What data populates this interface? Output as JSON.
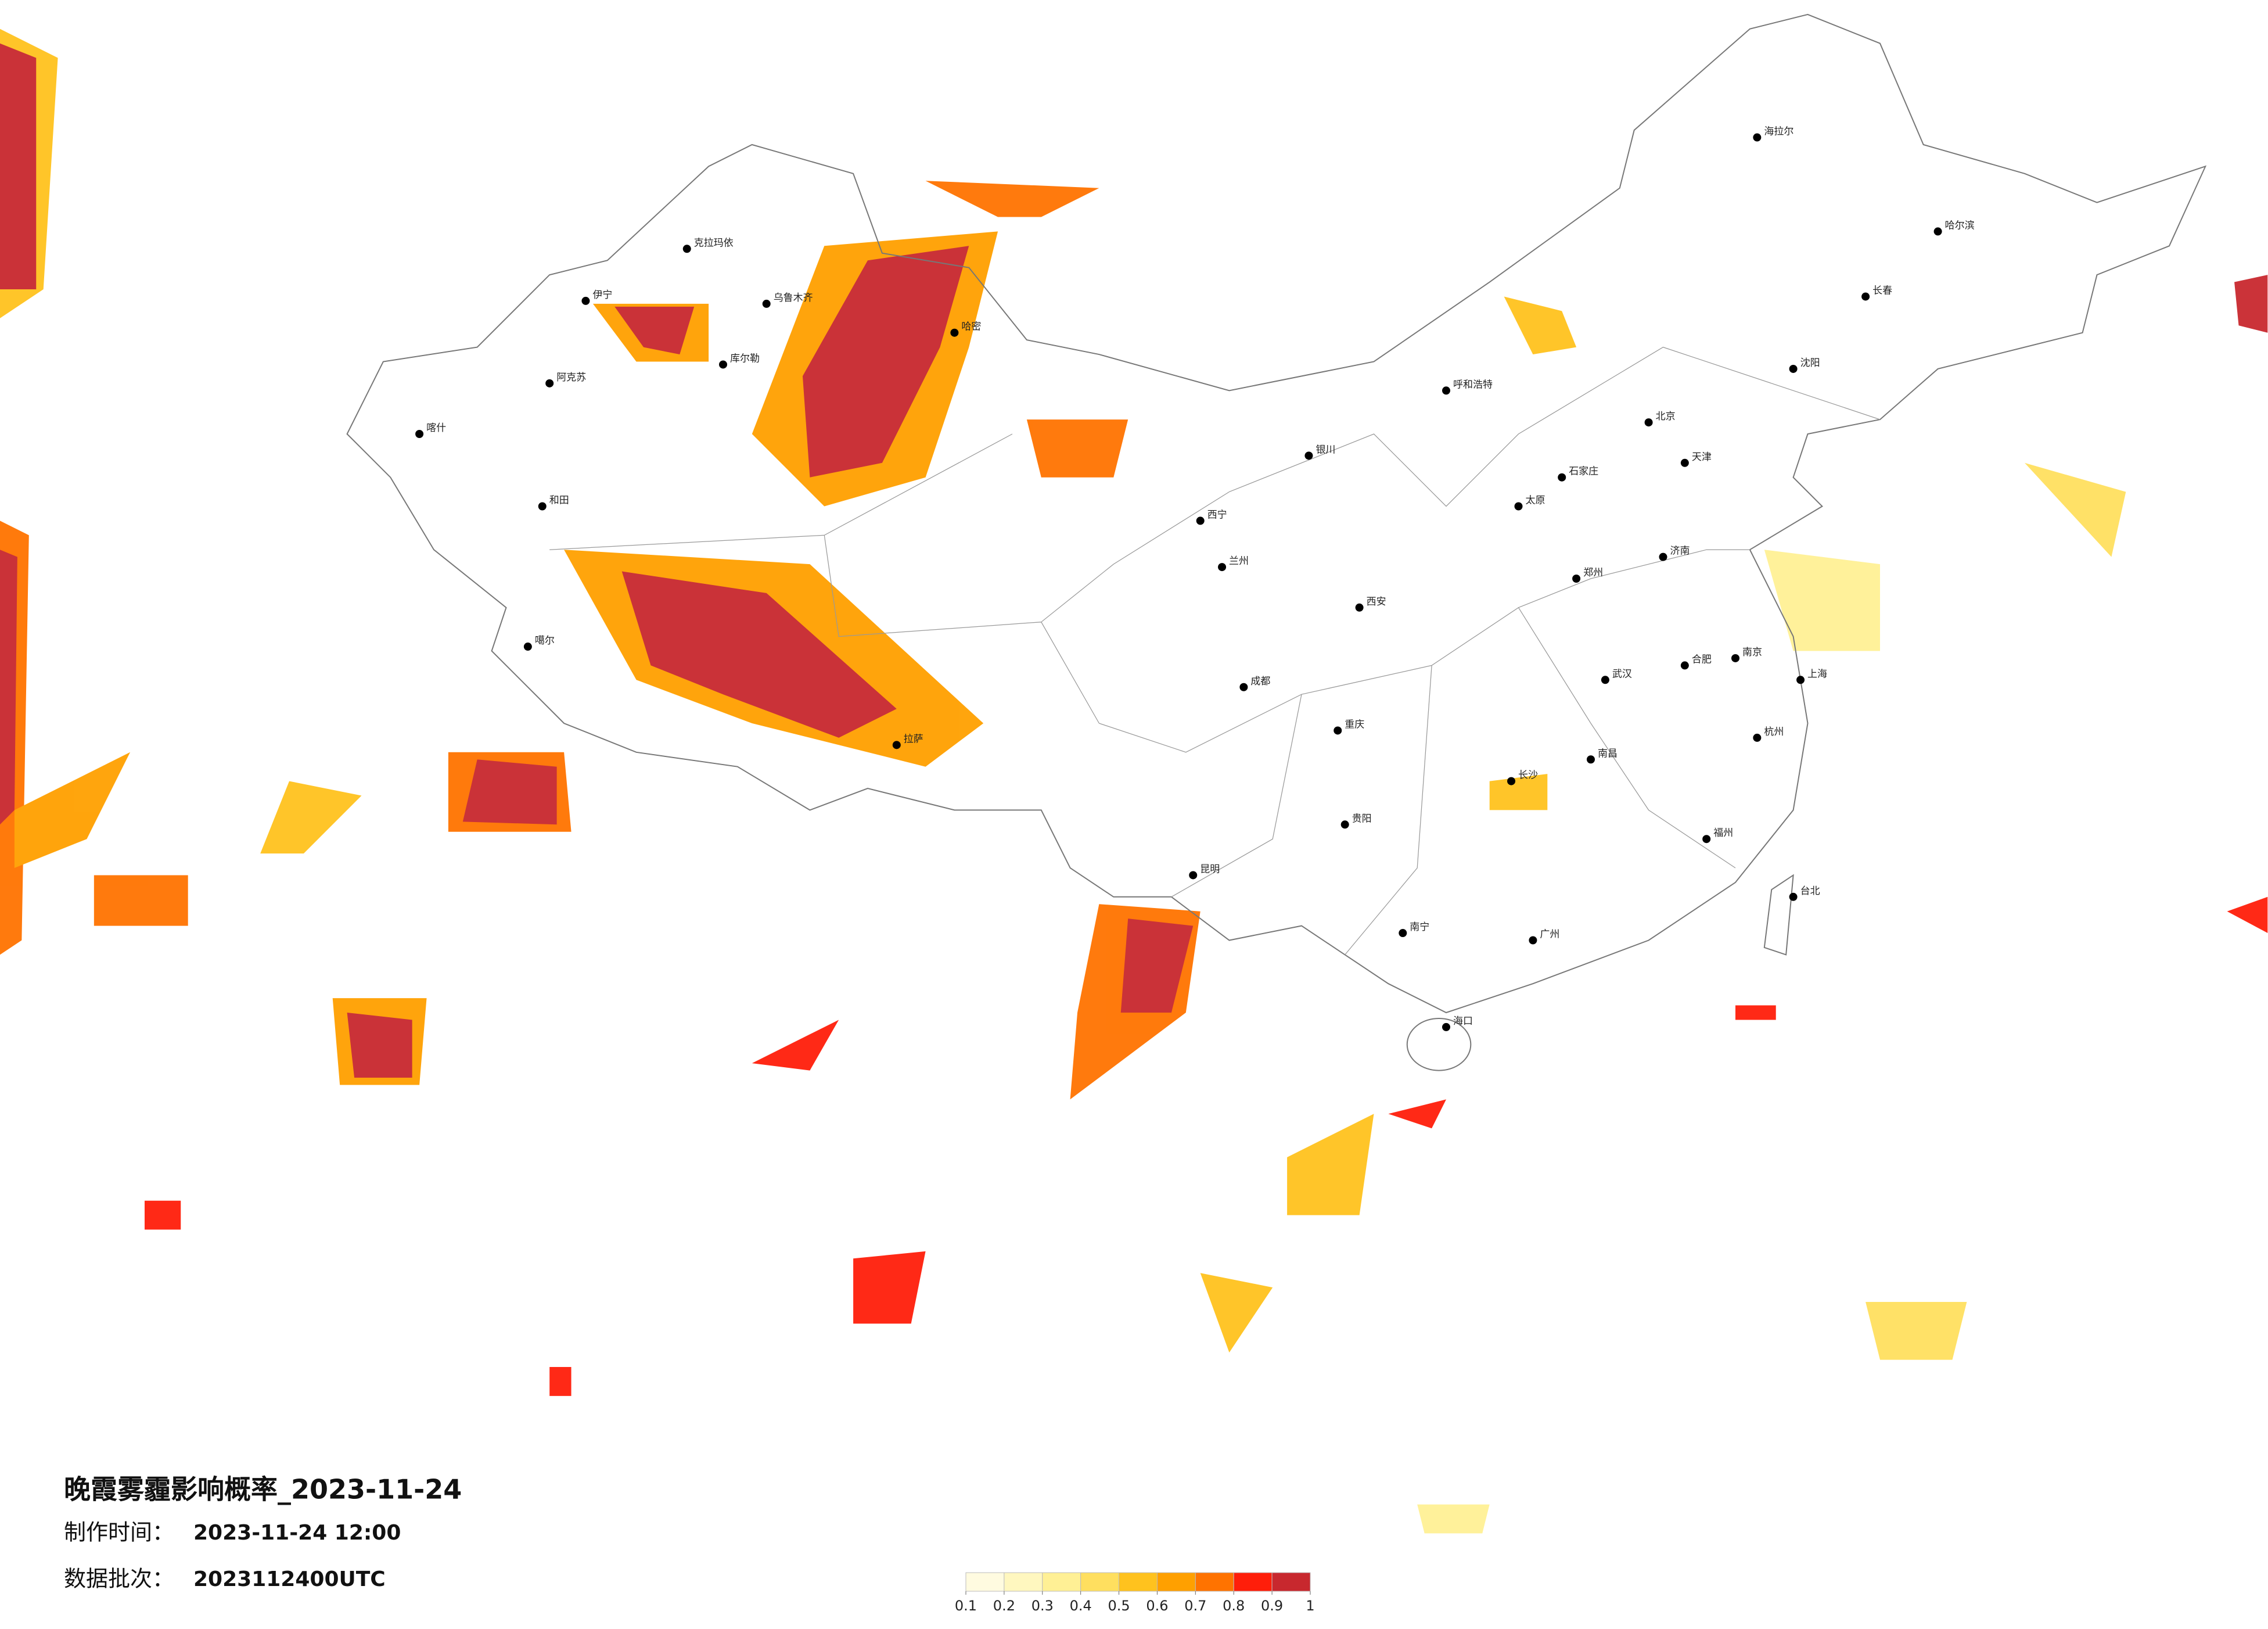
{
  "map": {
    "title": "晚霞雾霾影响概率_2023-11-24",
    "issue_time_label": "制作时间：",
    "issue_time": "2023-11-24 12:00",
    "batch_label": "数据批次：",
    "batch": "2023112400UTC",
    "legend": {
      "colors": [
        "#fffbe0",
        "#fff7bf",
        "#fff095",
        "#ffdf5f",
        "#ffc21e",
        "#ffa000",
        "#ff7300",
        "#ff1e0a",
        "#c8282e"
      ],
      "ticks": [
        0.1,
        0.2,
        0.3,
        0.4,
        0.5,
        0.6,
        0.7,
        0.8,
        0.9,
        1
      ]
    },
    "cities": [
      "克拉玛依",
      "伊宁",
      "乌鲁木齐",
      "哈密",
      "库尔勒",
      "阿克苏",
      "和田",
      "喀什",
      "噶尔",
      "拉萨",
      "西宁",
      "兰州",
      "银川",
      "呼和浩特",
      "北京",
      "天津",
      "石家庄",
      "太原",
      "济南",
      "郑州",
      "西安",
      "成都",
      "重庆",
      "贵阳",
      "昆明",
      "南宁",
      "广州",
      "长沙",
      "武汉",
      "南昌",
      "合肥",
      "南京",
      "上海",
      "杭州",
      "福州",
      "沈阳",
      "长春",
      "哈尔滨",
      "海拉尔",
      "台北",
      "海口"
    ]
  }
}
